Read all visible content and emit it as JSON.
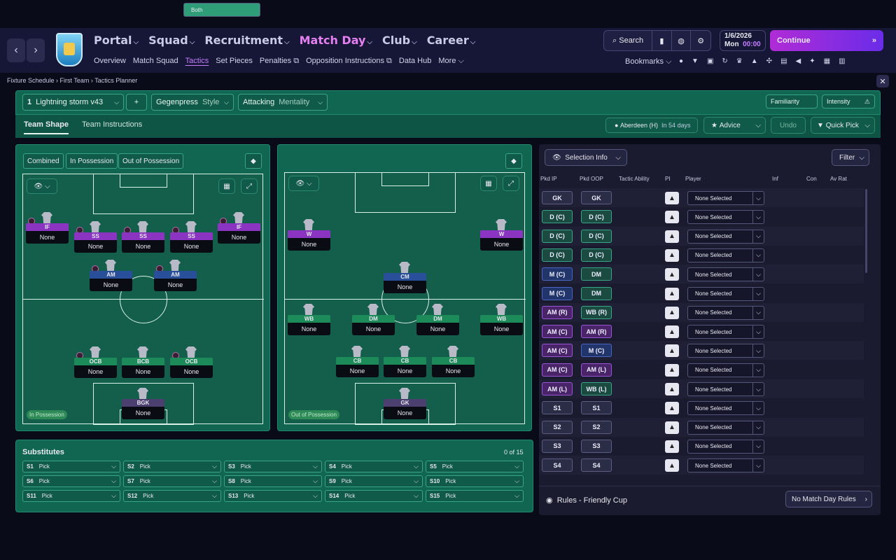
{
  "nav": {
    "main": [
      "Portal",
      "Squad",
      "Recruitment",
      "Match Day",
      "Club",
      "Career"
    ],
    "sub": [
      "Overview",
      "Match Squad",
      "Tactics",
      "Set Pieces",
      "Penalties",
      "Opposition Instructions",
      "Data Hub",
      "More"
    ]
  },
  "search_label": "Search",
  "date": {
    "date": "1/6/2026",
    "day": "Mon",
    "time": "00:00"
  },
  "continue_label": "Continue",
  "bookmarks_label": "Bookmarks",
  "breadcrumb": [
    "Fixture Schedule",
    "First Team",
    "Tactics Planner"
  ],
  "tactic": {
    "number": "1",
    "name": "Lightning storm v43",
    "style_value": "Gegenpress",
    "style_label": "Style",
    "mentality_value": "Attacking",
    "mentality_label": "Mentality",
    "familiarity": "Familiarity",
    "intensity": "Intensity"
  },
  "tabs": {
    "team_shape": "Team Shape",
    "team_instructions": "Team Instructions"
  },
  "fixture": {
    "opponent": "Aberdeen (H)",
    "when": "In 54 days"
  },
  "actions": {
    "advice": "Advice",
    "undo": "Undo",
    "quick_pick": "Quick Pick"
  },
  "views": [
    "Combined",
    "In Possession",
    "Out of Possession",
    "Both"
  ],
  "ip_label": "In Possession",
  "oop_label": "Out of Possession",
  "ip_players": [
    {
      "role": "IF",
      "name": "None",
      "c": "r-att"
    },
    {
      "role": "SS",
      "name": "None",
      "c": "r-att"
    },
    {
      "role": "SS",
      "name": "None",
      "c": "r-att"
    },
    {
      "role": "SS",
      "name": "None",
      "c": "r-att"
    },
    {
      "role": "IF",
      "name": "None",
      "c": "r-att"
    },
    {
      "role": "AM",
      "name": "None",
      "c": "r-mid"
    },
    {
      "role": "AM",
      "name": "None",
      "c": "r-mid"
    },
    {
      "role": "OCB",
      "name": "None",
      "c": "r-def"
    },
    {
      "role": "BCB",
      "name": "None",
      "c": "r-def"
    },
    {
      "role": "OCB",
      "name": "None",
      "c": "r-def"
    },
    {
      "role": "BGK",
      "name": "None",
      "c": "r-gk"
    }
  ],
  "oop_players": [
    {
      "role": "W",
      "name": "None",
      "c": "r-att"
    },
    {
      "role": "W",
      "name": "None",
      "c": "r-att"
    },
    {
      "role": "CM",
      "name": "None",
      "c": "r-mid"
    },
    {
      "role": "WB",
      "name": "None",
      "c": "r-def"
    },
    {
      "role": "DM",
      "name": "None",
      "c": "r-def"
    },
    {
      "role": "DM",
      "name": "None",
      "c": "r-def"
    },
    {
      "role": "WB",
      "name": "None",
      "c": "r-def"
    },
    {
      "role": "CB",
      "name": "None",
      "c": "r-def"
    },
    {
      "role": "CB",
      "name": "None",
      "c": "r-def"
    },
    {
      "role": "CB",
      "name": "None",
      "c": "r-def"
    },
    {
      "role": "GK",
      "name": "None",
      "c": "r-gk"
    }
  ],
  "subs": {
    "title": "Substitutes",
    "count": "0 of 15",
    "pick": "Pick",
    "slots": [
      "S1",
      "S2",
      "S3",
      "S4",
      "S5",
      "S6",
      "S7",
      "S8",
      "S9",
      "S10",
      "S11",
      "S12",
      "S13",
      "S14",
      "S15"
    ]
  },
  "selection": {
    "selection_info": "Selection Info",
    "filter": "Filter",
    "headers": [
      "Pkd IP",
      "Pkd OOP",
      "Tactic Ability",
      "PI",
      "Player",
      "Inf",
      "Con",
      "Av Rat"
    ],
    "none": "None Selected",
    "rows": [
      [
        "GK",
        "GK",
        "s",
        "s"
      ],
      [
        "D (C)",
        "D (C)",
        "d",
        "d"
      ],
      [
        "D (C)",
        "D (C)",
        "d",
        "d"
      ],
      [
        "D (C)",
        "D (C)",
        "d",
        "d"
      ],
      [
        "M (C)",
        "DM",
        "m",
        "d"
      ],
      [
        "M (C)",
        "DM",
        "m",
        "d"
      ],
      [
        "AM (R)",
        "WB (R)",
        "a",
        "d"
      ],
      [
        "AM (C)",
        "AM (R)",
        "a",
        "a"
      ],
      [
        "AM (C)",
        "M (C)",
        "a",
        "m"
      ],
      [
        "AM (C)",
        "AM (L)",
        "a",
        "a"
      ],
      [
        "AM (L)",
        "WB (L)",
        "a",
        "d"
      ],
      [
        "S1",
        "S1",
        "s",
        "s"
      ],
      [
        "S2",
        "S2",
        "s",
        "s"
      ],
      [
        "S3",
        "S3",
        "s",
        "s"
      ],
      [
        "S4",
        "S4",
        "s",
        "s"
      ]
    ]
  },
  "rules": {
    "label": "Rules - Friendly Cup",
    "button": "No Match Day Rules"
  }
}
